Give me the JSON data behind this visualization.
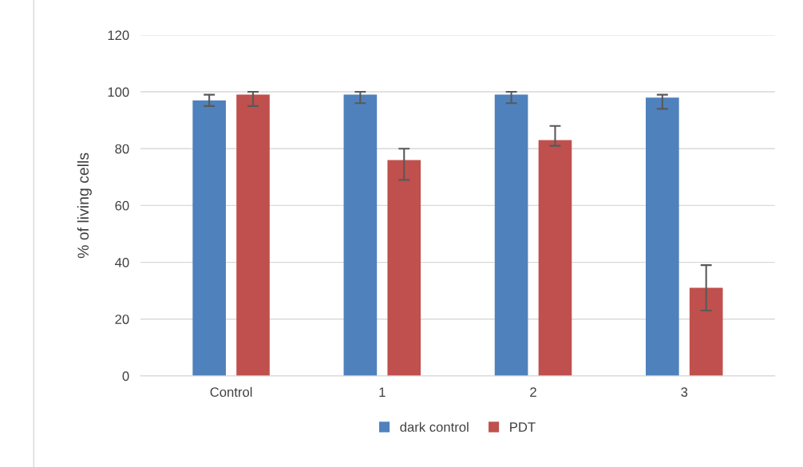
{
  "chart_data": {
    "type": "bar",
    "ylabel": "% of living cells",
    "categories": [
      "Control",
      "1",
      "2",
      "3"
    ],
    "series": [
      {
        "name": "dark control",
        "color": "#4f81bd",
        "values": [
          97,
          99,
          99,
          98
        ],
        "errors": [
          [
            95,
            99
          ],
          [
            96,
            100
          ],
          [
            96,
            100
          ],
          [
            94,
            99
          ]
        ]
      },
      {
        "name": "PDT",
        "color": "#c0504d",
        "values": [
          99,
          76,
          83,
          31
        ],
        "errors": [
          [
            95,
            100
          ],
          [
            69,
            80
          ],
          [
            81,
            88
          ],
          [
            23,
            39
          ]
        ]
      }
    ],
    "ylim": [
      0,
      120
    ],
    "yticks": [
      0,
      20,
      40,
      60,
      80,
      100,
      120
    ],
    "grid": "y",
    "legend": "bottom"
  }
}
